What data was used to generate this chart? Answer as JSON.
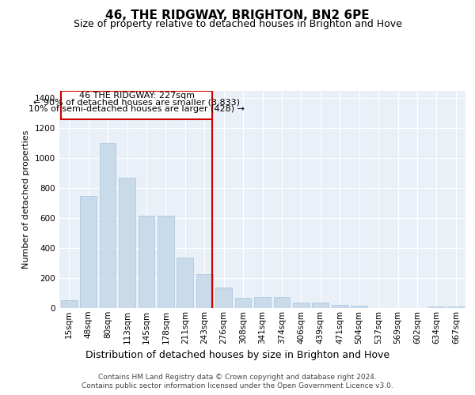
{
  "title": "46, THE RIDGWAY, BRIGHTON, BN2 6PE",
  "subtitle": "Size of property relative to detached houses in Brighton and Hove",
  "xlabel": "Distribution of detached houses by size in Brighton and Hove",
  "ylabel": "Number of detached properties",
  "categories": [
    "15sqm",
    "48sqm",
    "80sqm",
    "113sqm",
    "145sqm",
    "178sqm",
    "211sqm",
    "243sqm",
    "276sqm",
    "308sqm",
    "341sqm",
    "374sqm",
    "406sqm",
    "439sqm",
    "471sqm",
    "504sqm",
    "537sqm",
    "569sqm",
    "602sqm",
    "634sqm",
    "667sqm"
  ],
  "bar_values": [
    55,
    750,
    1100,
    870,
    615,
    615,
    340,
    225,
    135,
    70,
    75,
    75,
    35,
    35,
    22,
    14,
    2,
    0,
    0,
    12,
    12
  ],
  "bar_color": "#c9daea",
  "bar_edgecolor": "#a8c4dc",
  "vline_color": "#cc0000",
  "annotation_line1": "46 THE RIDGWAY: 227sqm",
  "annotation_line2": "← 90% of detached houses are smaller (3,833)",
  "annotation_line3": "10% of semi-detached houses are larger (428) →",
  "background_color": "#eaf0f8",
  "grid_color": "#ffffff",
  "ylim": [
    0,
    1450
  ],
  "footer_line1": "Contains HM Land Registry data © Crown copyright and database right 2024.",
  "footer_line2": "Contains public sector information licensed under the Open Government Licence v3.0.",
  "title_fontsize": 11,
  "subtitle_fontsize": 9,
  "xlabel_fontsize": 9,
  "ylabel_fontsize": 8,
  "tick_fontsize": 7.5,
  "annotation_fontsize": 8,
  "footer_fontsize": 6.5
}
